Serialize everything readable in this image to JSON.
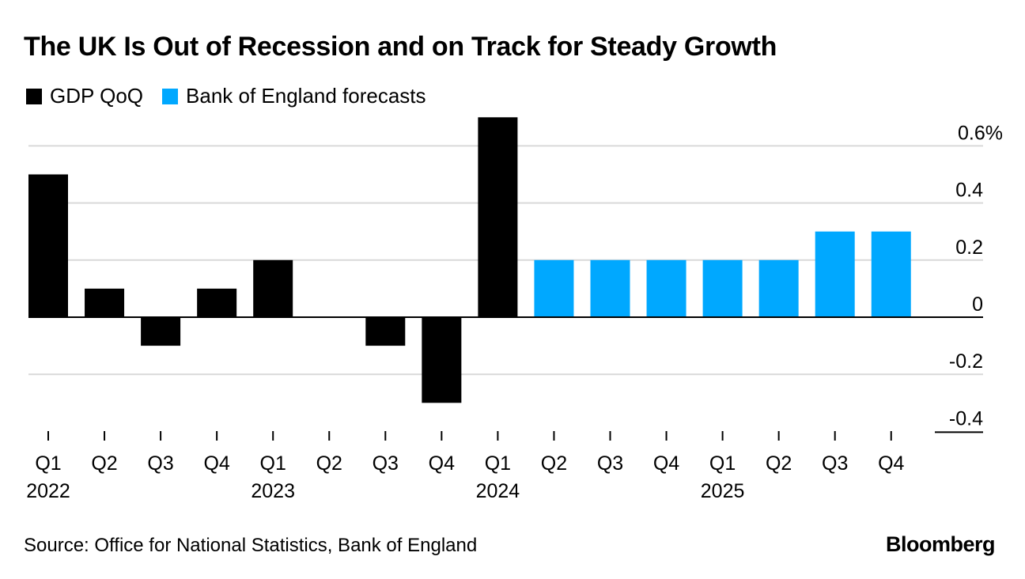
{
  "title": "The UK Is Out of Recession and on Track for Steady Growth",
  "legend": [
    {
      "label": "GDP QoQ",
      "color": "#000000"
    },
    {
      "label": "Bank of England forecasts",
      "color": "#00a8ff"
    }
  ],
  "source": "Source: Office for National Statistics, Bank of England",
  "brand": "Bloomberg",
  "chart_data": {
    "type": "bar",
    "title": "The UK Is Out of Recession and on Track for Steady Growth",
    "xlabel": "",
    "ylabel": "",
    "categories": [
      "Q1",
      "Q2",
      "Q3",
      "Q4",
      "Q1",
      "Q2",
      "Q3",
      "Q4",
      "Q1",
      "Q2",
      "Q3",
      "Q4",
      "Q1",
      "Q2",
      "Q3",
      "Q4"
    ],
    "years": [
      {
        "label": "2022",
        "index": 0
      },
      {
        "label": "2023",
        "index": 4
      },
      {
        "label": "2024",
        "index": 8
      },
      {
        "label": "2025",
        "index": 12
      }
    ],
    "series": [
      {
        "name": "GDP QoQ",
        "color": "#000000",
        "values": [
          0.5,
          0.1,
          -0.1,
          0.1,
          0.2,
          0.0,
          -0.1,
          -0.3,
          0.7,
          null,
          null,
          null,
          null,
          null,
          null,
          null
        ]
      },
      {
        "name": "Bank of England forecasts",
        "color": "#00a8ff",
        "values": [
          null,
          null,
          null,
          null,
          null,
          null,
          null,
          null,
          null,
          0.2,
          0.2,
          0.2,
          0.2,
          0.2,
          0.3,
          0.3
        ]
      }
    ],
    "ylim": [
      -0.4,
      0.6
    ],
    "yticks": [
      {
        "value": 0.6,
        "label": "0.6%"
      },
      {
        "value": 0.4,
        "label": "0.4"
      },
      {
        "value": 0.2,
        "label": "0.2"
      },
      {
        "value": 0,
        "label": "0"
      },
      {
        "value": -0.2,
        "label": "-0.2"
      },
      {
        "value": -0.4,
        "label": "-0.4"
      }
    ],
    "grid": true,
    "legend_position": "top-left"
  }
}
